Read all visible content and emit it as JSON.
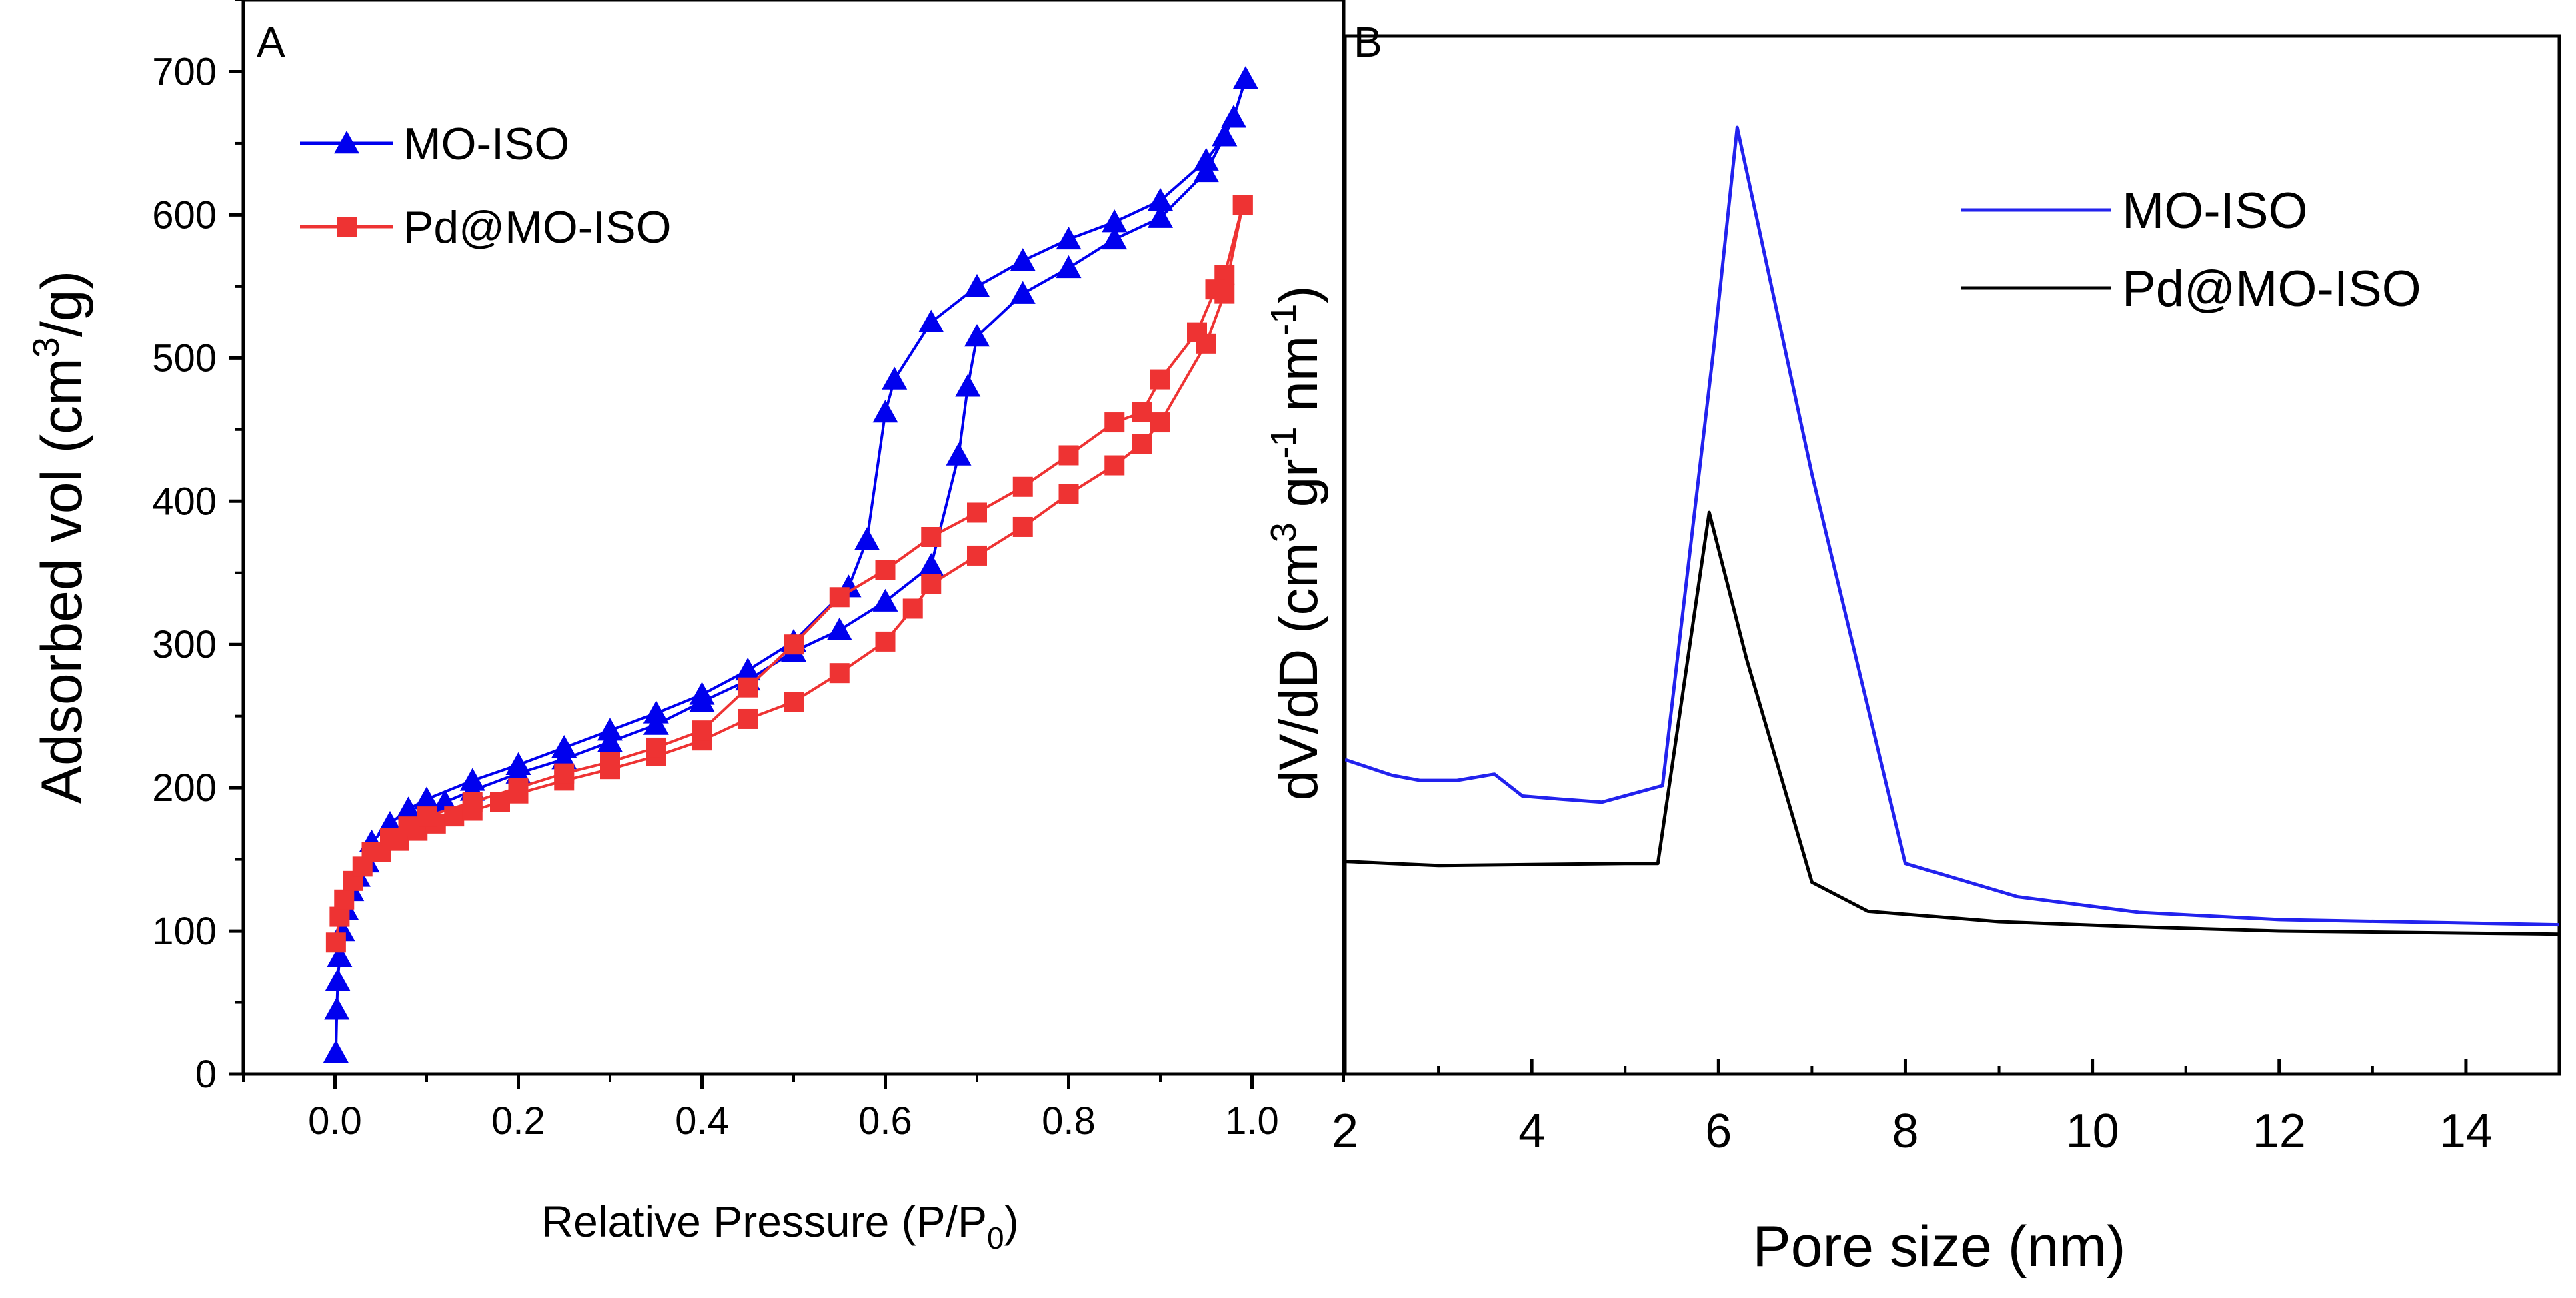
{
  "chart_data": [
    {
      "panel_label": "A",
      "type": "line",
      "xlabel_main": "Relative Pressure (P/P",
      "xlabel_sub": "0",
      "xlabel_end": ")",
      "ylabel_main": "Adsorbed vol (cm",
      "ylabel_sup": "3",
      "ylabel_end": "/g)",
      "xlim": [
        -0.1,
        1.1
      ],
      "ylim": [
        0,
        750
      ],
      "xticks": [
        0.0,
        0.2,
        0.4,
        0.6,
        0.8,
        1.0
      ],
      "xtick_labels": [
        "0.0",
        "0.2",
        "0.4",
        "0.6",
        "0.8",
        "1.0"
      ],
      "yticks": [
        0,
        100,
        200,
        300,
        400,
        500,
        600,
        700
      ],
      "ytick_labels": [
        "0",
        "100",
        "200",
        "300",
        "400",
        "500",
        "600",
        "700"
      ],
      "legend_position": "top-left",
      "series": [
        {
          "name": "MO-ISO",
          "color": "#0000ee",
          "marker": "triangle",
          "adsorption": [
            [
              0.001,
              15
            ],
            [
              0.002,
              45
            ],
            [
              0.003,
              65
            ],
            [
              0.005,
              82
            ],
            [
              0.008,
              100
            ],
            [
              0.012,
              115
            ],
            [
              0.018,
              128
            ],
            [
              0.025,
              138
            ],
            [
              0.035,
              148
            ],
            [
              0.045,
              155
            ],
            [
              0.06,
              165
            ],
            [
              0.08,
              175
            ],
            [
              0.1,
              183
            ],
            [
              0.12,
              190
            ],
            [
              0.15,
              198
            ],
            [
              0.2,
              210
            ],
            [
              0.25,
              220
            ],
            [
              0.3,
              232
            ],
            [
              0.35,
              244
            ],
            [
              0.4,
              260
            ],
            [
              0.45,
              275
            ],
            [
              0.5,
              295
            ],
            [
              0.55,
              310
            ],
            [
              0.6,
              330
            ],
            [
              0.65,
              355
            ],
            [
              0.68,
              432
            ],
            [
              0.69,
              480
            ],
            [
              0.7,
              515
            ],
            [
              0.75,
              545
            ],
            [
              0.8,
              563
            ],
            [
              0.85,
              583
            ],
            [
              0.9,
              598
            ],
            [
              0.95,
              630
            ],
            [
              0.97,
              655
            ],
            [
              0.98,
              668
            ],
            [
              0.993,
              695
            ]
          ],
          "desorption": [
            [
              0.993,
              695
            ],
            [
              0.98,
              668
            ],
            [
              0.97,
              655
            ],
            [
              0.95,
              638
            ],
            [
              0.9,
              610
            ],
            [
              0.85,
              595
            ],
            [
              0.8,
              583
            ],
            [
              0.75,
              568
            ],
            [
              0.7,
              550
            ],
            [
              0.65,
              525
            ],
            [
              0.61,
              485
            ],
            [
              0.6,
              462
            ],
            [
              0.58,
              373
            ],
            [
              0.56,
              340
            ],
            [
              0.5,
              302
            ],
            [
              0.45,
              282
            ],
            [
              0.4,
              265
            ],
            [
              0.35,
              252
            ],
            [
              0.3,
              240
            ],
            [
              0.25,
              228
            ],
            [
              0.2,
              216
            ],
            [
              0.15,
              205
            ],
            [
              0.1,
              192
            ],
            [
              0.08,
              185
            ],
            [
              0.06,
              175
            ],
            [
              0.04,
              162
            ]
          ]
        },
        {
          "name": "Pd@MO-ISO",
          "color": "#ee3333",
          "marker": "square",
          "adsorption": [
            [
              0.001,
              92
            ],
            [
              0.005,
              110
            ],
            [
              0.01,
              122
            ],
            [
              0.02,
              135
            ],
            [
              0.03,
              145
            ],
            [
              0.05,
              155
            ],
            [
              0.07,
              163
            ],
            [
              0.09,
              170
            ],
            [
              0.11,
              175
            ],
            [
              0.13,
              180
            ],
            [
              0.15,
              184
            ],
            [
              0.18,
              190
            ],
            [
              0.2,
              196
            ],
            [
              0.25,
              205
            ],
            [
              0.3,
              213
            ],
            [
              0.35,
              222
            ],
            [
              0.4,
              233
            ],
            [
              0.45,
              248
            ],
            [
              0.5,
              260
            ],
            [
              0.55,
              280
            ],
            [
              0.6,
              302
            ],
            [
              0.63,
              325
            ],
            [
              0.65,
              342
            ],
            [
              0.7,
              362
            ],
            [
              0.75,
              382
            ],
            [
              0.8,
              405
            ],
            [
              0.85,
              425
            ],
            [
              0.88,
              440
            ],
            [
              0.9,
              455
            ],
            [
              0.95,
              510
            ],
            [
              0.97,
              545
            ],
            [
              0.99,
              607
            ]
          ],
          "desorption": [
            [
              0.99,
              607
            ],
            [
              0.97,
              558
            ],
            [
              0.96,
              548
            ],
            [
              0.94,
              518
            ],
            [
              0.9,
              485
            ],
            [
              0.88,
              462
            ],
            [
              0.85,
              455
            ],
            [
              0.8,
              432
            ],
            [
              0.75,
              410
            ],
            [
              0.7,
              392
            ],
            [
              0.65,
              375
            ],
            [
              0.6,
              352
            ],
            [
              0.55,
              333
            ],
            [
              0.5,
              300
            ],
            [
              0.45,
              270
            ],
            [
              0.4,
              240
            ],
            [
              0.35,
              228
            ],
            [
              0.3,
              218
            ],
            [
              0.25,
              210
            ],
            [
              0.2,
              200
            ],
            [
              0.15,
              190
            ],
            [
              0.1,
              180
            ],
            [
              0.08,
              173
            ],
            [
              0.06,
              165
            ],
            [
              0.04,
              155
            ]
          ]
        }
      ]
    },
    {
      "panel_label": "B",
      "type": "line",
      "xlabel": "Pore size (nm)",
      "ylabel_main": "dV/dD (cm",
      "ylabel_sup1": "3",
      "ylabel_mid": " gr",
      "ylabel_sup2": "-1",
      "ylabel_mid2": " nm",
      "ylabel_sup3": "-1",
      "ylabel_end": ")",
      "xlim": [
        2,
        15
      ],
      "ylim": [
        0,
        100
      ],
      "xticks": [
        2,
        4,
        6,
        8,
        10,
        12,
        14
      ],
      "xtick_labels": [
        "2",
        "4",
        "6",
        "8",
        "10",
        "12",
        "14"
      ],
      "legend_position": "top-right",
      "series": [
        {
          "name": "MO-ISO",
          "color": "#2222ee",
          "points": [
            [
              2.0,
              30.3
            ],
            [
              2.5,
              28.8
            ],
            [
              2.8,
              28.3
            ],
            [
              3.2,
              28.3
            ],
            [
              3.6,
              28.9
            ],
            [
              3.9,
              26.8
            ],
            [
              4.3,
              26.5
            ],
            [
              4.75,
              26.2
            ],
            [
              5.4,
              27.8
            ],
            [
              5.95,
              70.0
            ],
            [
              6.2,
              91.2
            ],
            [
              7.0,
              57.8
            ],
            [
              8.0,
              20.3
            ],
            [
              9.2,
              17.1
            ],
            [
              10.5,
              15.6
            ],
            [
              12.0,
              14.9
            ],
            [
              15.0,
              14.4
            ]
          ]
        },
        {
          "name": "Pd@MO-ISO",
          "color": "#000000",
          "points": [
            [
              2.0,
              20.5
            ],
            [
              2.5,
              20.3
            ],
            [
              3.0,
              20.1
            ],
            [
              4.0,
              20.2
            ],
            [
              5.0,
              20.3
            ],
            [
              5.35,
              20.3
            ],
            [
              5.9,
              54.1
            ],
            [
              6.3,
              40.0
            ],
            [
              7.0,
              18.5
            ],
            [
              7.6,
              15.7
            ],
            [
              9.0,
              14.7
            ],
            [
              10.5,
              14.2
            ],
            [
              12.0,
              13.8
            ],
            [
              15.0,
              13.5
            ]
          ]
        }
      ]
    }
  ]
}
